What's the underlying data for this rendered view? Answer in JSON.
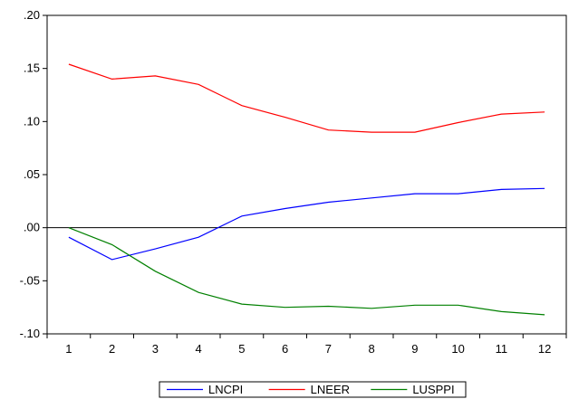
{
  "chart_data": {
    "type": "line",
    "title": "",
    "xlabel": "",
    "ylabel": "",
    "x": [
      1,
      2,
      3,
      4,
      5,
      6,
      7,
      8,
      9,
      10,
      11,
      12
    ],
    "xticks": [
      "1",
      "2",
      "3",
      "4",
      "5",
      "6",
      "7",
      "8",
      "9",
      "10",
      "11",
      "12"
    ],
    "ylim": [
      -0.1,
      0.2
    ],
    "yticks": [
      {
        "value": 0.2,
        "label": ".20"
      },
      {
        "value": 0.15,
        "label": ".15"
      },
      {
        "value": 0.1,
        "label": ".10"
      },
      {
        "value": 0.05,
        "label": ".05"
      },
      {
        "value": 0.0,
        "label": ".00"
      },
      {
        "value": -0.05,
        "label": "-.05"
      },
      {
        "value": -0.1,
        "label": "-.10"
      }
    ],
    "zero_line": true,
    "grid": false,
    "legend_position": "bottom-center",
    "series": [
      {
        "name": "LNCPI",
        "color": "#0000ff",
        "values": [
          -0.009,
          -0.03,
          -0.02,
          -0.009,
          0.011,
          0.018,
          0.024,
          0.028,
          0.032,
          0.032,
          0.036,
          0.037
        ]
      },
      {
        "name": "LNEER",
        "color": "#ff0000",
        "values": [
          0.154,
          0.14,
          0.143,
          0.135,
          0.115,
          0.104,
          0.092,
          0.09,
          0.09,
          0.099,
          0.107,
          0.109
        ]
      },
      {
        "name": "LUSPPI",
        "color": "#008000",
        "values": [
          0.0,
          -0.016,
          -0.041,
          -0.061,
          -0.072,
          -0.075,
          -0.074,
          -0.076,
          -0.073,
          -0.073,
          -0.079,
          -0.082
        ]
      }
    ]
  }
}
